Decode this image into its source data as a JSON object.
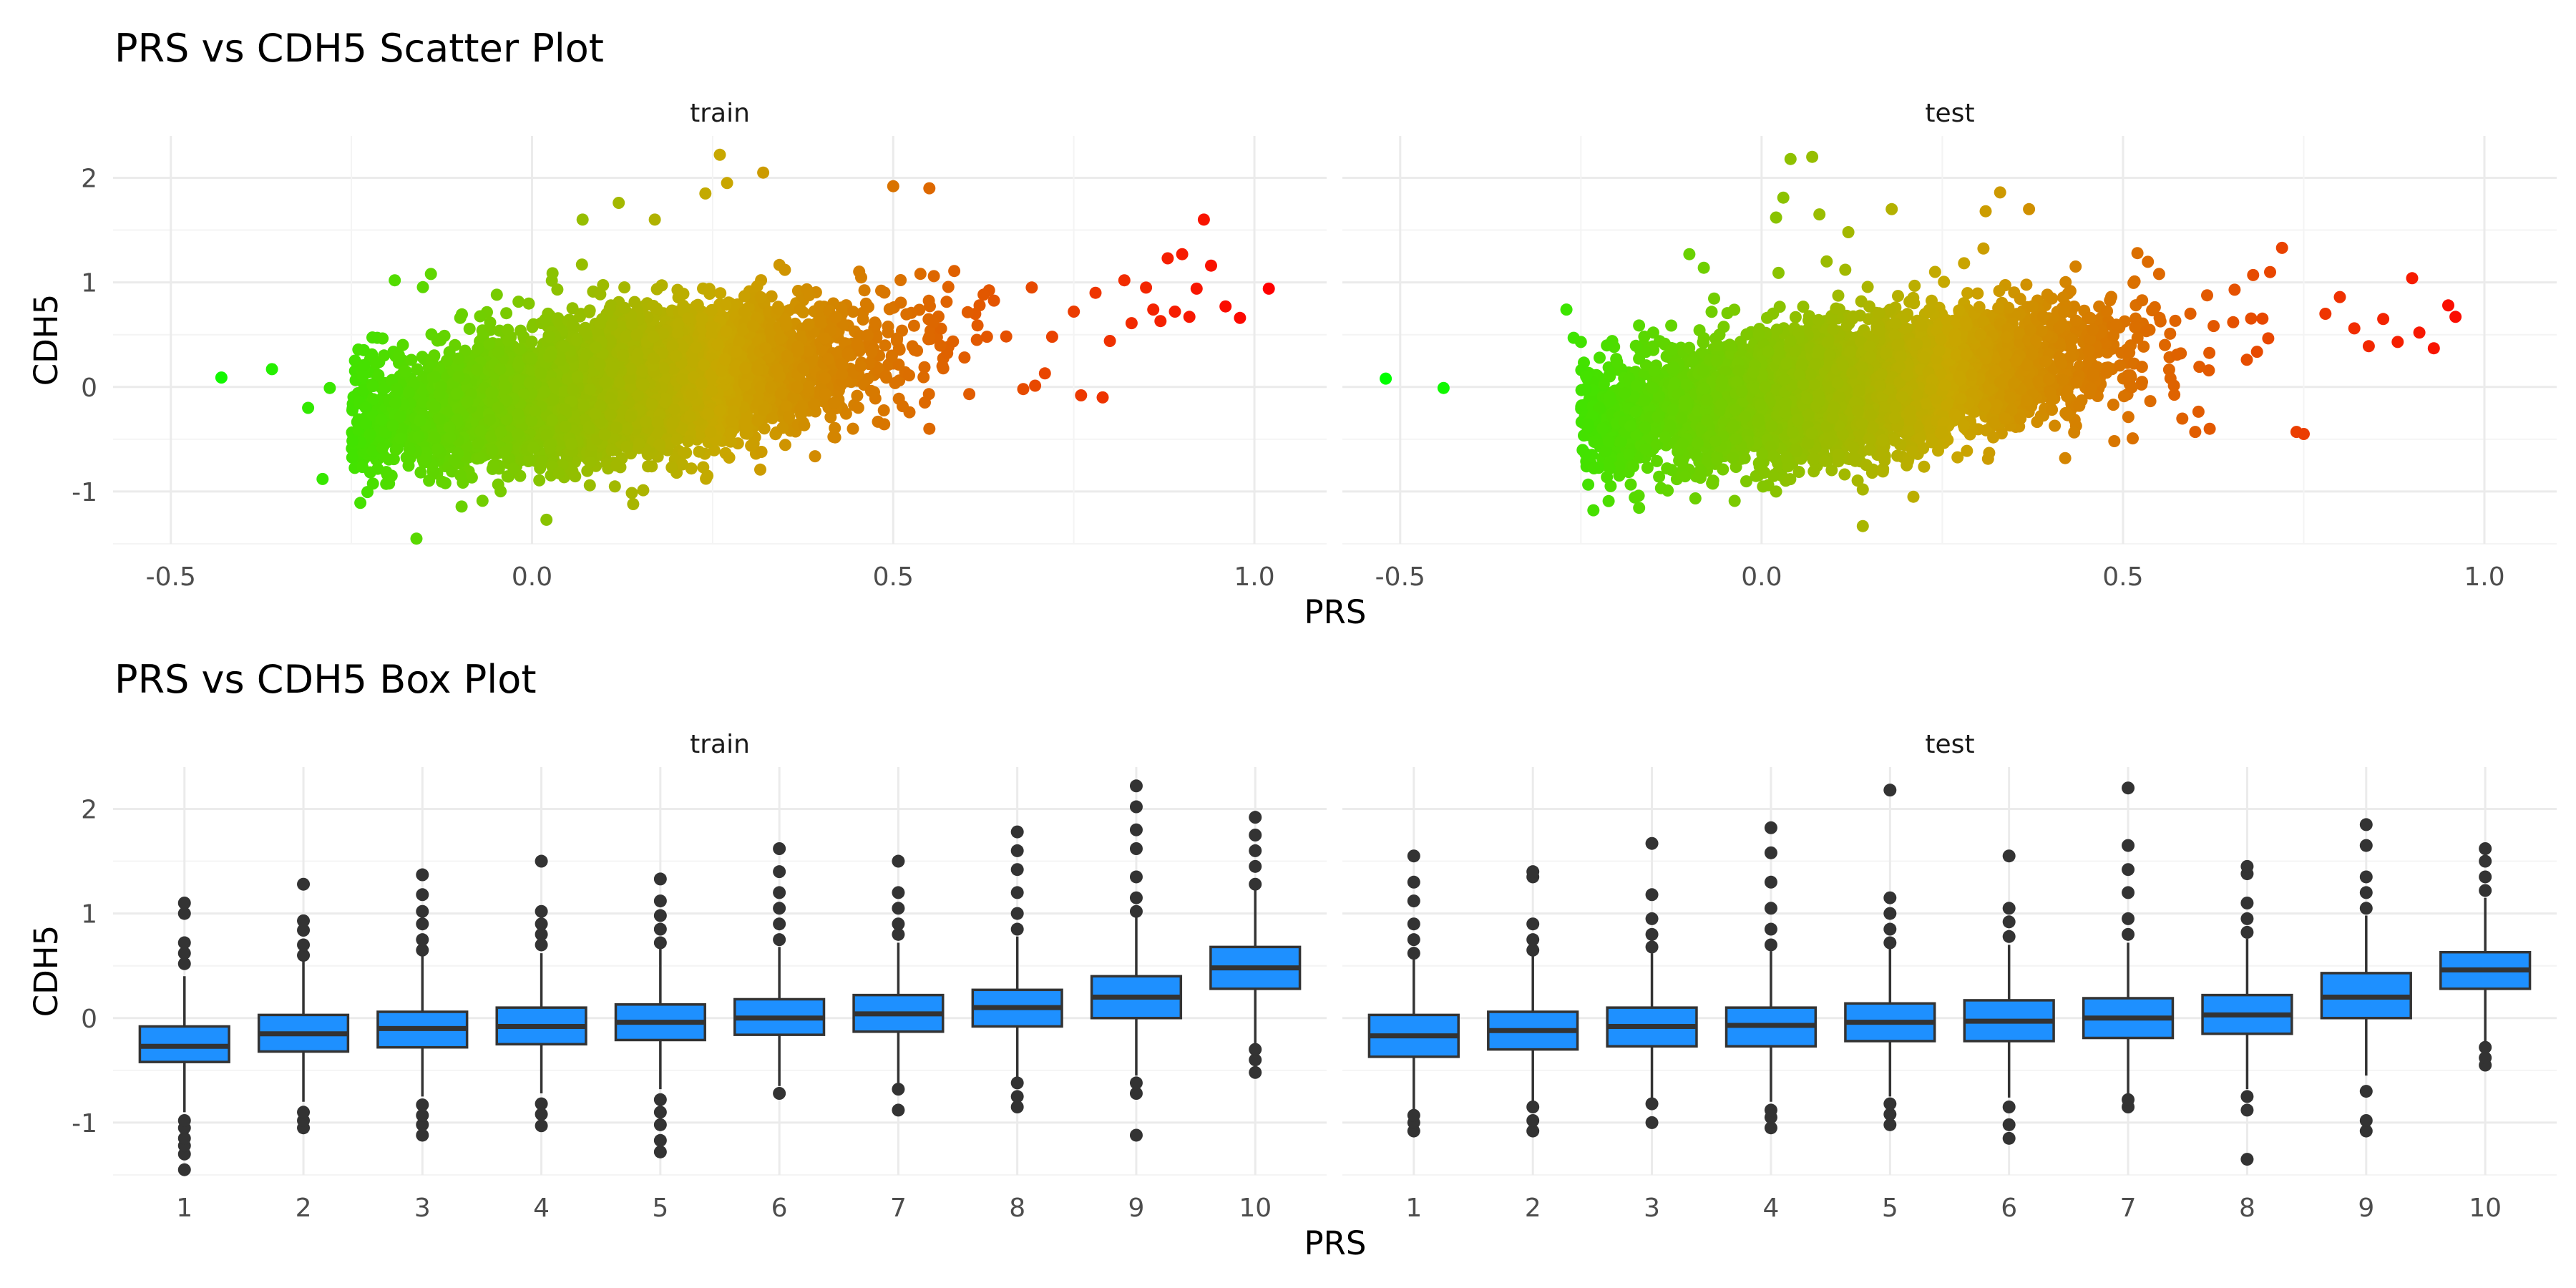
{
  "colors": {
    "grid_major": "#ebebeb",
    "grid_minor": "#f4f4f4",
    "box_fill": "#1e90ff",
    "box_line": "#333333",
    "gradient_low": "#00ff00",
    "gradient_mid": "#c8a800",
    "gradient_high": "#ff0000"
  },
  "chart_data": [
    {
      "type": "scatter",
      "title": "PRS vs CDH5 Scatter Plot",
      "xlabel": "PRS",
      "ylabel": "CDH5",
      "xlim": [
        -0.58,
        1.1
      ],
      "ylim": [
        -1.5,
        2.4
      ],
      "xticks": [
        -0.5,
        0.0,
        0.5,
        1.0
      ],
      "yticks": [
        -1,
        0,
        1,
        2
      ],
      "xtick_labels": [
        "-0.5",
        "0.0",
        "0.5",
        "1.0"
      ],
      "ytick_labels": [
        "-1",
        "0",
        "1",
        "2"
      ],
      "color_by": "PRS",
      "color_scale": [
        "#00ff00",
        "#c8a800",
        "#ff0000"
      ],
      "panels": [
        {
          "facet": "train",
          "center_x": 0.12,
          "spread_x": 0.17,
          "slope": 0.9,
          "intercept": -0.1,
          "noise": 0.32,
          "points": [
            [
              -0.43,
              0.09
            ],
            [
              -0.36,
              0.17
            ],
            [
              -0.31,
              -0.2
            ],
            [
              -0.29,
              -0.88
            ],
            [
              -0.28,
              -0.01
            ],
            [
              -0.19,
              1.02
            ],
            [
              -0.16,
              -1.45
            ],
            [
              -0.14,
              1.08
            ],
            [
              -0.12,
              -0.92
            ],
            [
              0.02,
              -1.27
            ],
            [
              0.07,
              1.6
            ],
            [
              0.08,
              -0.94
            ],
            [
              0.12,
              1.76
            ],
            [
              0.14,
              -1.12
            ],
            [
              0.17,
              1.6
            ],
            [
              0.24,
              1.85
            ],
            [
              0.26,
              2.22
            ],
            [
              0.27,
              1.95
            ],
            [
              0.32,
              2.05
            ],
            [
              0.35,
              1.12
            ],
            [
              0.5,
              1.92
            ],
            [
              0.55,
              -0.4
            ],
            [
              0.55,
              1.9
            ],
            [
              0.68,
              -0.02
            ],
            [
              0.71,
              0.13
            ],
            [
              0.72,
              0.48
            ],
            [
              0.75,
              0.72
            ],
            [
              0.76,
              -0.08
            ],
            [
              0.78,
              0.9
            ],
            [
              0.79,
              -0.1
            ],
            [
              0.8,
              0.44
            ],
            [
              0.82,
              1.02
            ],
            [
              0.83,
              0.61
            ],
            [
              0.85,
              0.95
            ],
            [
              0.86,
              0.74
            ],
            [
              0.87,
              0.63
            ],
            [
              0.88,
              1.23
            ],
            [
              0.89,
              0.72
            ],
            [
              0.9,
              1.27
            ],
            [
              0.91,
              0.67
            ],
            [
              0.92,
              0.94
            ],
            [
              0.93,
              1.6
            ],
            [
              0.94,
              1.16
            ],
            [
              0.96,
              0.77
            ],
            [
              0.98,
              0.66
            ],
            [
              1.02,
              0.94
            ]
          ]
        },
        {
          "facet": "test",
          "center_x": 0.12,
          "spread_x": 0.17,
          "slope": 0.9,
          "intercept": -0.1,
          "noise": 0.3,
          "points": [
            [
              -0.52,
              0.08
            ],
            [
              -0.44,
              -0.01
            ],
            [
              -0.27,
              0.74
            ],
            [
              -0.26,
              0.47
            ],
            [
              -0.25,
              0.43
            ],
            [
              -0.24,
              -0.36
            ],
            [
              -0.22,
              -0.4
            ],
            [
              -0.21,
              -0.78
            ],
            [
              -0.2,
              0.24
            ],
            [
              -0.17,
              -1.04
            ],
            [
              -0.15,
              0.52
            ],
            [
              -0.13,
              -0.99
            ],
            [
              -0.1,
              1.27
            ],
            [
              -0.08,
              1.14
            ],
            [
              0.02,
              1.62
            ],
            [
              0.03,
              1.81
            ],
            [
              0.02,
              -1.0
            ],
            [
              0.04,
              2.18
            ],
            [
              0.07,
              2.2
            ],
            [
              0.08,
              1.65
            ],
            [
              0.09,
              1.2
            ],
            [
              0.12,
              1.48
            ],
            [
              0.14,
              -1.33
            ],
            [
              0.14,
              -0.98
            ],
            [
              0.18,
              1.7
            ],
            [
              0.21,
              -1.05
            ],
            [
              0.24,
              1.1
            ],
            [
              0.25,
              -0.43
            ],
            [
              0.31,
              1.68
            ],
            [
              0.33,
              1.86
            ],
            [
              0.37,
              1.7
            ],
            [
              0.52,
              1.28
            ],
            [
              0.55,
              1.08
            ],
            [
              0.6,
              -0.43
            ],
            [
              0.62,
              -0.4
            ],
            [
              0.68,
              1.07
            ],
            [
              0.72,
              1.33
            ],
            [
              0.74,
              -0.43
            ],
            [
              0.75,
              -0.45
            ],
            [
              0.78,
              0.7
            ],
            [
              0.8,
              0.86
            ],
            [
              0.82,
              0.56
            ],
            [
              0.84,
              0.39
            ],
            [
              0.86,
              0.65
            ],
            [
              0.88,
              0.43
            ],
            [
              0.9,
              1.04
            ],
            [
              0.91,
              0.52
            ],
            [
              0.93,
              0.37
            ],
            [
              0.95,
              0.78
            ],
            [
              0.96,
              0.67
            ]
          ]
        }
      ]
    },
    {
      "type": "box",
      "title": "PRS vs CDH5 Box Plot",
      "xlabel": "PRS",
      "ylabel": "CDH5",
      "ylim": [
        -1.5,
        2.4
      ],
      "yticks": [
        -1,
        0,
        1,
        2
      ],
      "ytick_labels": [
        "-1",
        "0",
        "1",
        "2"
      ],
      "categories": [
        "1",
        "2",
        "3",
        "4",
        "5",
        "6",
        "7",
        "8",
        "9",
        "10"
      ],
      "panels": [
        {
          "facet": "train",
          "boxes": [
            {
              "q1": -0.42,
              "median": -0.27,
              "q3": -0.08,
              "whisker_low": -0.9,
              "whisker_high": 0.4,
              "outliers": [
                -1.45,
                -1.3,
                -1.22,
                -1.15,
                -1.05,
                -0.98,
                0.52,
                0.62,
                0.72,
                1.0,
                1.1
              ]
            },
            {
              "q1": -0.32,
              "median": -0.15,
              "q3": 0.03,
              "whisker_low": -0.8,
              "whisker_high": 0.55,
              "outliers": [
                -1.05,
                -0.98,
                -0.9,
                0.6,
                0.7,
                0.84,
                0.93,
                1.28
              ]
            },
            {
              "q1": -0.28,
              "median": -0.1,
              "q3": 0.06,
              "whisker_low": -0.75,
              "whisker_high": 0.6,
              "outliers": [
                -1.12,
                -1.02,
                -0.93,
                -0.83,
                0.65,
                0.75,
                0.9,
                1.02,
                1.18,
                1.37
              ]
            },
            {
              "q1": -0.25,
              "median": -0.08,
              "q3": 0.1,
              "whisker_low": -0.72,
              "whisker_high": 0.62,
              "outliers": [
                -1.03,
                -0.92,
                -0.82,
                0.7,
                0.8,
                0.9,
                1.02,
                1.5
              ]
            },
            {
              "q1": -0.21,
              "median": -0.04,
              "q3": 0.13,
              "whisker_low": -0.68,
              "whisker_high": 0.66,
              "outliers": [
                -1.28,
                -1.17,
                -1.02,
                -0.9,
                -0.78,
                0.72,
                0.85,
                0.98,
                1.12,
                1.33
              ]
            },
            {
              "q1": -0.16,
              "median": 0.0,
              "q3": 0.18,
              "whisker_low": -0.65,
              "whisker_high": 0.68,
              "outliers": [
                -0.72,
                0.75,
                0.9,
                1.05,
                1.2,
                1.4,
                1.62
              ]
            },
            {
              "q1": -0.13,
              "median": 0.04,
              "q3": 0.22,
              "whisker_low": -0.62,
              "whisker_high": 0.72,
              "outliers": [
                -0.88,
                -0.68,
                0.8,
                0.9,
                1.05,
                1.2,
                1.5
              ]
            },
            {
              "q1": -0.08,
              "median": 0.1,
              "q3": 0.27,
              "whisker_low": -0.58,
              "whisker_high": 0.78,
              "outliers": [
                -0.85,
                -0.75,
                -0.62,
                0.85,
                1.0,
                1.2,
                1.42,
                1.6,
                1.78
              ]
            },
            {
              "q1": 0.0,
              "median": 0.2,
              "q3": 0.4,
              "whisker_low": -0.55,
              "whisker_high": 0.98,
              "outliers": [
                -1.12,
                -0.72,
                -0.62,
                1.02,
                1.15,
                1.35,
                1.62,
                1.8,
                2.02,
                2.22
              ]
            },
            {
              "q1": 0.28,
              "median": 0.48,
              "q3": 0.68,
              "whisker_low": -0.25,
              "whisker_high": 1.22,
              "outliers": [
                -0.52,
                -0.4,
                -0.3,
                1.28,
                1.45,
                1.6,
                1.75,
                1.92
              ]
            }
          ]
        },
        {
          "facet": "test",
          "boxes": [
            {
              "q1": -0.37,
              "median": -0.17,
              "q3": 0.03,
              "whisker_low": -0.9,
              "whisker_high": 0.58,
              "outliers": [
                -1.08,
                -1.0,
                -0.93,
                0.62,
                0.75,
                0.9,
                1.12,
                1.3,
                1.55
              ]
            },
            {
              "q1": -0.3,
              "median": -0.12,
              "q3": 0.06,
              "whisker_low": -0.82,
              "whisker_high": 0.6,
              "outliers": [
                -1.08,
                -0.98,
                -0.85,
                0.65,
                0.75,
                0.9,
                1.35,
                1.4
              ]
            },
            {
              "q1": -0.27,
              "median": -0.08,
              "q3": 0.1,
              "whisker_low": -0.78,
              "whisker_high": 0.62,
              "outliers": [
                -1.0,
                -0.82,
                0.68,
                0.8,
                0.95,
                1.18,
                1.67
              ]
            },
            {
              "q1": -0.27,
              "median": -0.07,
              "q3": 0.1,
              "whisker_low": -0.8,
              "whisker_high": 0.64,
              "outliers": [
                -1.05,
                -0.95,
                -0.88,
                0.7,
                0.85,
                1.05,
                1.3,
                1.58,
                1.82
              ]
            },
            {
              "q1": -0.22,
              "median": -0.04,
              "q3": 0.14,
              "whisker_low": -0.75,
              "whisker_high": 0.68,
              "outliers": [
                -1.02,
                -0.92,
                -0.82,
                0.72,
                0.85,
                1.0,
                1.15,
                2.18
              ]
            },
            {
              "q1": -0.22,
              "median": -0.03,
              "q3": 0.17,
              "whisker_low": -0.76,
              "whisker_high": 0.7,
              "outliers": [
                -1.15,
                -1.02,
                -0.85,
                0.78,
                0.92,
                1.05,
                1.55
              ]
            },
            {
              "q1": -0.19,
              "median": 0.0,
              "q3": 0.19,
              "whisker_low": -0.72,
              "whisker_high": 0.72,
              "outliers": [
                -0.85,
                -0.78,
                0.8,
                0.95,
                1.2,
                1.42,
                1.65,
                2.2
              ]
            },
            {
              "q1": -0.15,
              "median": 0.03,
              "q3": 0.22,
              "whisker_low": -0.68,
              "whisker_high": 0.76,
              "outliers": [
                -1.35,
                -0.88,
                -0.75,
                0.82,
                0.95,
                1.1,
                1.38,
                1.45
              ]
            },
            {
              "q1": 0.0,
              "median": 0.2,
              "q3": 0.43,
              "whisker_low": -0.55,
              "whisker_high": 0.98,
              "outliers": [
                -1.08,
                -0.98,
                -0.7,
                1.05,
                1.2,
                1.35,
                1.65,
                1.85
              ]
            },
            {
              "q1": 0.28,
              "median": 0.46,
              "q3": 0.63,
              "whisker_low": -0.25,
              "whisker_high": 1.15,
              "outliers": [
                -0.45,
                -0.38,
                -0.28,
                1.22,
                1.35,
                1.5,
                1.62
              ]
            }
          ]
        }
      ]
    }
  ]
}
